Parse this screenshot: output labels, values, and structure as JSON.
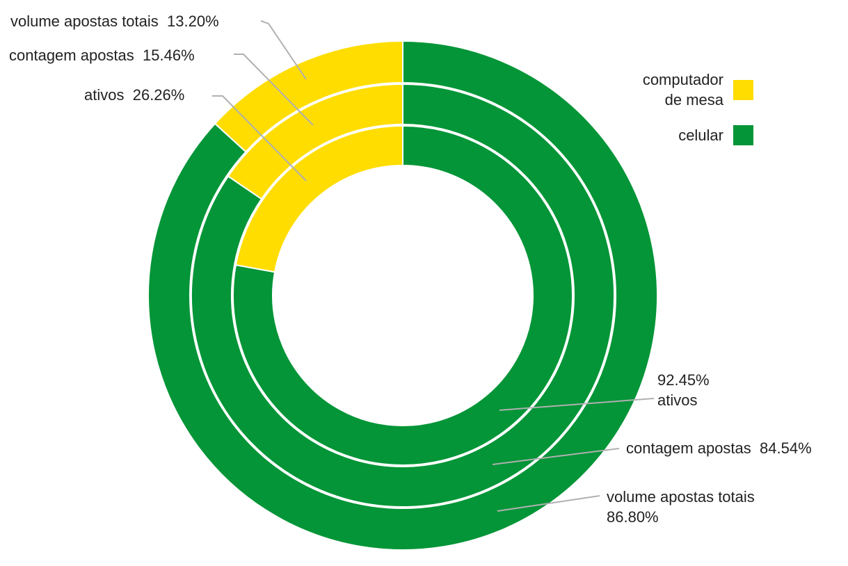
{
  "chart_data": {
    "type": "pie",
    "variant": "nested-donut",
    "series_names": [
      "computador de mesa",
      "celular"
    ],
    "colors": {
      "computador de mesa": "#FFDD00",
      "celular": "#039537"
    },
    "rings": [
      {
        "name": "volume apostas totais",
        "values": [
          13.2,
          86.8
        ],
        "labels": [
          "13.20%",
          "86.80%"
        ]
      },
      {
        "name": "contagem apostas",
        "values": [
          15.46,
          84.54
        ],
        "labels": [
          "15.46%",
          "84.54%"
        ]
      },
      {
        "name": "ativos",
        "values": [
          26.26,
          92.45
        ],
        "labels": [
          "26.26%",
          "92.45%"
        ]
      }
    ],
    "legend": {
      "placement": "top-right",
      "entries": [
        "computador de mesa",
        "celular"
      ]
    }
  },
  "legend": {
    "desktop_line1": "computador",
    "desktop_line2": "de mesa",
    "mobile": "celular"
  }
}
